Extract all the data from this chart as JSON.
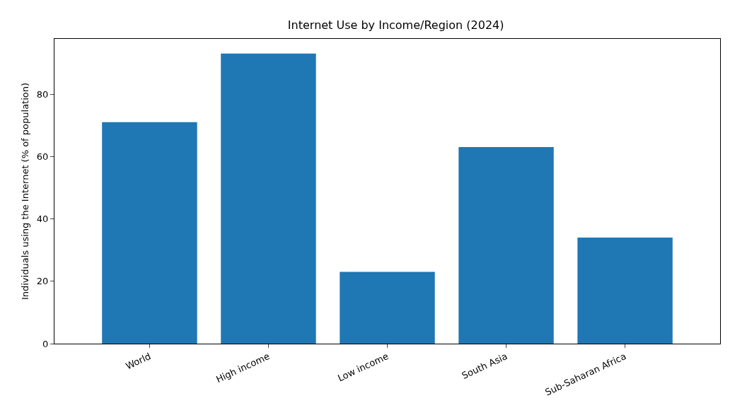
{
  "chart_data": {
    "type": "bar",
    "title": "Internet Use by Income/Region (2024)",
    "ylabel": "Individuals using the Internet (% of population)",
    "categories": [
      "World",
      "High income",
      "Low income",
      "South Asia",
      "Sub-Saharan Africa"
    ],
    "values": [
      71,
      93,
      23,
      63,
      34
    ],
    "color": "#1f77b4",
    "ylim": [
      0,
      97.7
    ],
    "yticks": [
      0,
      20,
      40,
      60,
      80
    ]
  }
}
